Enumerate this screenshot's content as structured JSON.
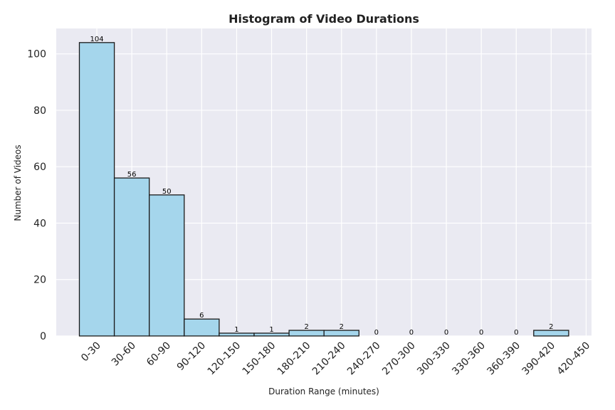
{
  "chart_data": {
    "type": "bar",
    "title": "Histogram of Video Durations",
    "xlabel": "Duration Range (minutes)",
    "ylabel": "Number of Videos",
    "categories": [
      "0-30",
      "30-60",
      "60-90",
      "90-120",
      "120-150",
      "150-180",
      "180-210",
      "210-240",
      "240-270",
      "270-300",
      "300-330",
      "330-360",
      "360-390",
      "390-420",
      "420-450"
    ],
    "values": [
      104,
      56,
      50,
      6,
      1,
      1,
      2,
      2,
      0,
      0,
      0,
      0,
      0,
      2,
      null
    ],
    "ylim": [
      0,
      109
    ],
    "yticks": [
      0,
      20,
      40,
      60,
      80,
      100
    ],
    "grid": true,
    "colors": {
      "bar_fill": "#a5d6ec",
      "bar_edge": "#1a1a1a",
      "plot_bg": "#eaeaf2",
      "grid": "#ffffff"
    }
  }
}
